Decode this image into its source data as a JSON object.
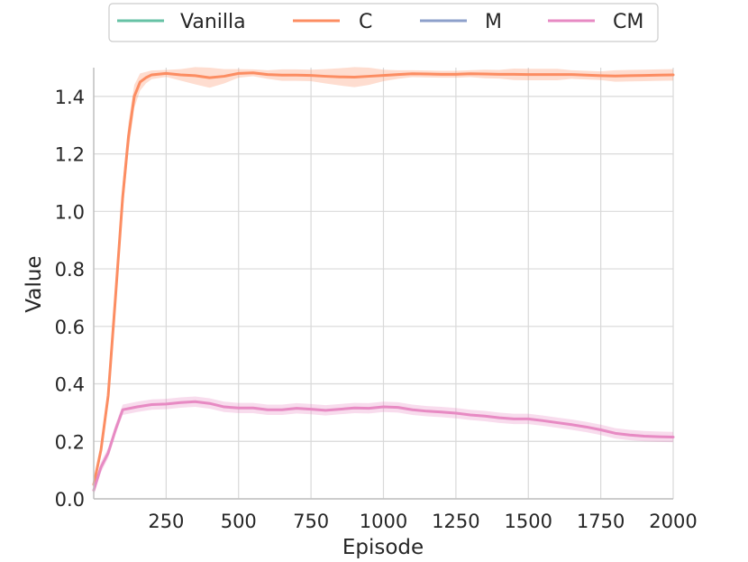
{
  "chart_data": {
    "type": "line",
    "xlabel": "Episode",
    "ylabel": "Value",
    "xlim": [
      0,
      2000
    ],
    "ylim": [
      0,
      1.5
    ],
    "x_ticks": [
      250,
      500,
      750,
      1000,
      1250,
      1500,
      1750,
      2000
    ],
    "x_tick_labels": [
      "250",
      "500",
      "750",
      "1000",
      "1250",
      "1500",
      "1750",
      "2000"
    ],
    "y_ticks": [
      0.0,
      0.2,
      0.4,
      0.6,
      0.8,
      1.0,
      1.2,
      1.4
    ],
    "y_tick_labels": [
      "0.0",
      "0.2",
      "0.4",
      "0.6",
      "0.8",
      "1.0",
      "1.2",
      "1.4"
    ],
    "grid": true,
    "legend_position": "top-center",
    "series": [
      {
        "name": "Vanilla",
        "color": "#66c2a5",
        "x": [],
        "values": []
      },
      {
        "name": "C",
        "color": "#fc8d62",
        "x": [
          0,
          25,
          50,
          75,
          100,
          120,
          140,
          160,
          180,
          200,
          250,
          300,
          350,
          400,
          450,
          500,
          550,
          600,
          650,
          700,
          750,
          800,
          850,
          900,
          950,
          1000,
          1050,
          1100,
          1150,
          1200,
          1250,
          1300,
          1350,
          1400,
          1450,
          1500,
          1550,
          1600,
          1650,
          1700,
          1750,
          1800,
          1850,
          1900,
          1950,
          2000
        ],
        "values": [
          0.05,
          0.17,
          0.36,
          0.7,
          1.05,
          1.26,
          1.4,
          1.45,
          1.465,
          1.475,
          1.48,
          1.475,
          1.472,
          1.465,
          1.47,
          1.48,
          1.482,
          1.476,
          1.474,
          1.474,
          1.473,
          1.47,
          1.468,
          1.467,
          1.47,
          1.473,
          1.476,
          1.479,
          1.478,
          1.477,
          1.477,
          1.479,
          1.478,
          1.477,
          1.477,
          1.476,
          1.476,
          1.476,
          1.476,
          1.474,
          1.472,
          1.471,
          1.472,
          1.473,
          1.474,
          1.475
        ],
        "band": [
          0.02,
          0.02,
          0.03,
          0.04,
          0.05,
          0.05,
          0.04,
          0.03,
          0.02,
          0.015,
          0.012,
          0.02,
          0.03,
          0.035,
          0.025,
          0.015,
          0.012,
          0.015,
          0.02,
          0.02,
          0.02,
          0.025,
          0.03,
          0.035,
          0.03,
          0.02,
          0.015,
          0.012,
          0.012,
          0.012,
          0.012,
          0.012,
          0.015,
          0.015,
          0.02,
          0.02,
          0.02,
          0.02,
          0.015,
          0.015,
          0.015,
          0.02,
          0.02,
          0.02,
          0.02,
          0.02
        ]
      },
      {
        "name": "M",
        "color": "#8da0cb",
        "x": [],
        "values": []
      },
      {
        "name": "CM",
        "color": "#e78ac3",
        "x": [
          0,
          25,
          50,
          75,
          100,
          125,
          150,
          200,
          250,
          300,
          350,
          400,
          450,
          500,
          550,
          600,
          650,
          700,
          750,
          800,
          850,
          900,
          950,
          1000,
          1050,
          1100,
          1150,
          1200,
          1250,
          1300,
          1350,
          1400,
          1450,
          1500,
          1550,
          1600,
          1650,
          1700,
          1750,
          1800,
          1850,
          1900,
          1950,
          2000
        ],
        "values": [
          0.03,
          0.11,
          0.16,
          0.24,
          0.31,
          0.315,
          0.32,
          0.328,
          0.33,
          0.335,
          0.338,
          0.332,
          0.32,
          0.316,
          0.316,
          0.31,
          0.31,
          0.315,
          0.312,
          0.308,
          0.312,
          0.316,
          0.315,
          0.32,
          0.318,
          0.31,
          0.305,
          0.302,
          0.298,
          0.292,
          0.288,
          0.282,
          0.278,
          0.278,
          0.272,
          0.265,
          0.258,
          0.25,
          0.24,
          0.228,
          0.222,
          0.218,
          0.216,
          0.215
        ]
      }
    ]
  }
}
